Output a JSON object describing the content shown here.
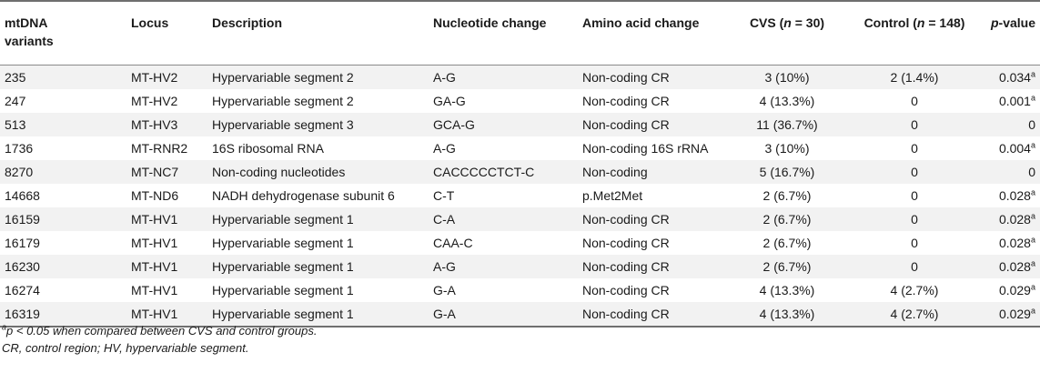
{
  "table": {
    "headers": {
      "variant_line1": "mtDNA",
      "variant_line2": "variants",
      "locus": "Locus",
      "description": "Description",
      "nucleotide": "Nucleotide change",
      "amino": "Amino acid change",
      "cvs": "CVS (",
      "cvs_n": "n",
      "cvs_tail": " = 30)",
      "control": "Control (",
      "control_n": "n",
      "control_tail": " = 148)",
      "p_italic": "p",
      "p_tail": "-value"
    },
    "rows": [
      {
        "variant": "235",
        "locus": "MT-HV2",
        "description": "Hypervariable segment 2",
        "nucleotide": "A-G",
        "amino": "Non-coding CR",
        "cvs": "3 (10%)",
        "control": "2 (1.4%)",
        "p": "0.034",
        "sig": "a"
      },
      {
        "variant": "247",
        "locus": "MT-HV2",
        "description": "Hypervariable segment 2",
        "nucleotide": "GA-G",
        "amino": "Non-coding CR",
        "cvs": "4 (13.3%)",
        "control": "0",
        "p": "0.001",
        "sig": "a"
      },
      {
        "variant": "513",
        "locus": "MT-HV3",
        "description": "Hypervariable segment 3",
        "nucleotide": "GCA-G",
        "amino": "Non-coding CR",
        "cvs": "11 (36.7%)",
        "control": "0",
        "p": "0",
        "sig": ""
      },
      {
        "variant": "1736",
        "locus": "MT-RNR2",
        "description": "16S ribosomal RNA",
        "nucleotide": "A-G",
        "amino": "Non-coding 16S rRNA",
        "cvs": "3 (10%)",
        "control": "0",
        "p": "0.004",
        "sig": "a"
      },
      {
        "variant": "8270",
        "locus": "MT-NC7",
        "description": "Non-coding nucleotides",
        "nucleotide": "CACCCCCTCT-C",
        "amino": "Non-coding",
        "cvs": "5 (16.7%)",
        "control": "0",
        "p": "0",
        "sig": ""
      },
      {
        "variant": "14668",
        "locus": "MT-ND6",
        "description": "NADH dehydrogenase subunit 6",
        "nucleotide": "C-T",
        "amino": "p.Met2Met",
        "cvs": "2 (6.7%)",
        "control": "0",
        "p": "0.028",
        "sig": "a"
      },
      {
        "variant": "16159",
        "locus": "MT-HV1",
        "description": "Hypervariable segment 1",
        "nucleotide": "C-A",
        "amino": "Non-coding CR",
        "cvs": "2 (6.7%)",
        "control": "0",
        "p": "0.028",
        "sig": "a"
      },
      {
        "variant": "16179",
        "locus": "MT-HV1",
        "description": "Hypervariable segment 1",
        "nucleotide": "CAA-C",
        "amino": "Non-coding CR",
        "cvs": "2 (6.7%)",
        "control": "0",
        "p": "0.028",
        "sig": "a"
      },
      {
        "variant": "16230",
        "locus": "MT-HV1",
        "description": "Hypervariable segment 1",
        "nucleotide": "A-G",
        "amino": "Non-coding CR",
        "cvs": "2 (6.7%)",
        "control": "0",
        "p": "0.028",
        "sig": "a"
      },
      {
        "variant": "16274",
        "locus": "MT-HV1",
        "description": "Hypervariable segment 1",
        "nucleotide": "G-A",
        "amino": "Non-coding CR",
        "cvs": "4 (13.3%)",
        "control": "4 (2.7%)",
        "p": "0.029",
        "sig": "a"
      },
      {
        "variant": "16319",
        "locus": "MT-HV1",
        "description": "Hypervariable segment 1",
        "nucleotide": "G-A",
        "amino": "Non-coding CR",
        "cvs": "4 (13.3%)",
        "control": "4 (2.7%)",
        "p": "0.029",
        "sig": "a"
      }
    ]
  },
  "footnotes": {
    "fn1_marker": "a",
    "fn1_p": "p",
    "fn1_text": " < 0.05 when compared between CVS and control groups.",
    "fn2": "CR, control region; HV, hypervariable segment."
  },
  "colors": {
    "stripe": "#f2f2f2",
    "rule": "#6f6f6f",
    "text": "#1a1a1a"
  }
}
